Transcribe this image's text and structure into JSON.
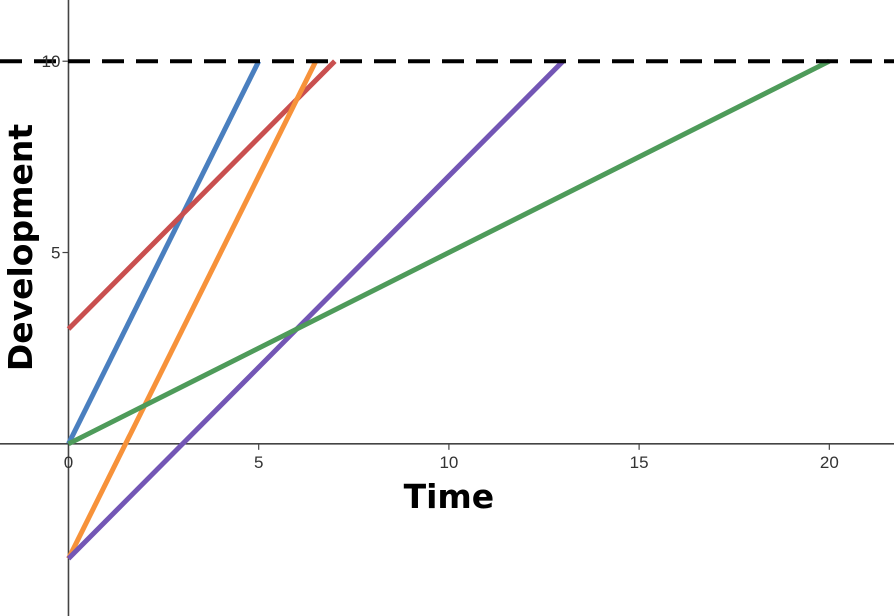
{
  "chart_data": {
    "type": "line",
    "xlabel": "Time",
    "ylabel": "Development",
    "xlim": [
      -1.8,
      21.7
    ],
    "ylim": [
      -4.5,
      11.6
    ],
    "x_ticks": [
      0,
      5,
      10,
      15,
      20
    ],
    "y_ticks": [
      5,
      10
    ],
    "origin_label": "0",
    "grid": false,
    "legend": "none",
    "reference_line": {
      "y": 10,
      "style": "dashed",
      "color": "#000000"
    },
    "series": [
      {
        "color": "#4a7fbf",
        "points": [
          [
            0,
            0
          ],
          [
            5,
            10
          ]
        ]
      },
      {
        "color": "#c94f4f",
        "points": [
          [
            0,
            3
          ],
          [
            7,
            10
          ]
        ]
      },
      {
        "color": "#f7923a",
        "points": [
          [
            0,
            -3
          ],
          [
            6.5,
            10
          ]
        ]
      },
      {
        "color": "#7356b5",
        "points": [
          [
            0,
            -3
          ],
          [
            13,
            10
          ]
        ]
      },
      {
        "color": "#4e9b5a",
        "points": [
          [
            0,
            0
          ],
          [
            20,
            10
          ]
        ]
      }
    ]
  }
}
